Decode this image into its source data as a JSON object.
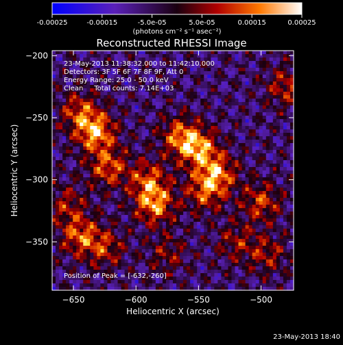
{
  "chart_data": {
    "type": "heatmap",
    "title": "Reconstructed RHESSI Image",
    "xlabel": "Heliocentric X (arcsec)",
    "ylabel": "Heliocentric Y (arcsec)",
    "xlim": [
      -667,
      -474
    ],
    "ylim": [
      -389,
      -196
    ],
    "xticks": [
      -650,
      -600,
      -550,
      -500
    ],
    "yticks": [
      -200,
      -250,
      -300,
      -350
    ],
    "colorbar": {
      "ticks": [
        -0.00025,
        -0.00015,
        -5e-05,
        5e-05,
        0.00015,
        0.00025
      ],
      "tick_labels": [
        "-0.00025",
        "-0.00015",
        "-5.0e-05",
        "5.0e-05",
        "0.00015",
        "0.00025"
      ],
      "unit_label": "(photons cm⁻² s⁻¹ asec⁻²)",
      "range": [
        -0.00025,
        0.00025
      ]
    },
    "annotations": [
      "23-May-2013 11:38:32.000 to 11:42:10.000",
      "Detectors: 3F 5F 6F 7F 8F 9F, Att 0",
      "Energy Range: 25.0 - 50.0 keV",
      "Clean     Total counts: 7.14E+03"
    ],
    "peak_label": "Position of Peak = [-632,-260]",
    "peak": [
      -632,
      -260
    ],
    "sources": [
      {
        "x": -632,
        "y": -262,
        "amp": 0.00024
      },
      {
        "x": -622,
        "y": -290,
        "amp": 0.00018
      },
      {
        "x": -645,
        "y": -245,
        "amp": 0.00016
      },
      {
        "x": -655,
        "y": -320,
        "amp": 0.00012
      },
      {
        "x": -645,
        "y": -345,
        "amp": 0.00018
      },
      {
        "x": -625,
        "y": -355,
        "amp": 0.00014
      },
      {
        "x": -590,
        "y": -300,
        "amp": 0.00017
      },
      {
        "x": -585,
        "y": -320,
        "amp": 0.00022
      },
      {
        "x": -565,
        "y": -265,
        "amp": 0.00018
      },
      {
        "x": -550,
        "y": -275,
        "amp": 0.00022
      },
      {
        "x": -535,
        "y": -295,
        "amp": 0.0002
      },
      {
        "x": -545,
        "y": -310,
        "amp": 0.00016
      },
      {
        "x": -500,
        "y": -318,
        "amp": 0.00016
      },
      {
        "x": -495,
        "y": -360,
        "amp": 0.00012
      },
      {
        "x": -480,
        "y": -225,
        "amp": 0.00014
      },
      {
        "x": -575,
        "y": -360,
        "amp": 0.0001
      },
      {
        "x": -520,
        "y": -350,
        "amp": 0.00011
      }
    ],
    "noise_amp": 9e-05
  },
  "footer": {
    "timestamp": "23-May-2013 18:40"
  }
}
